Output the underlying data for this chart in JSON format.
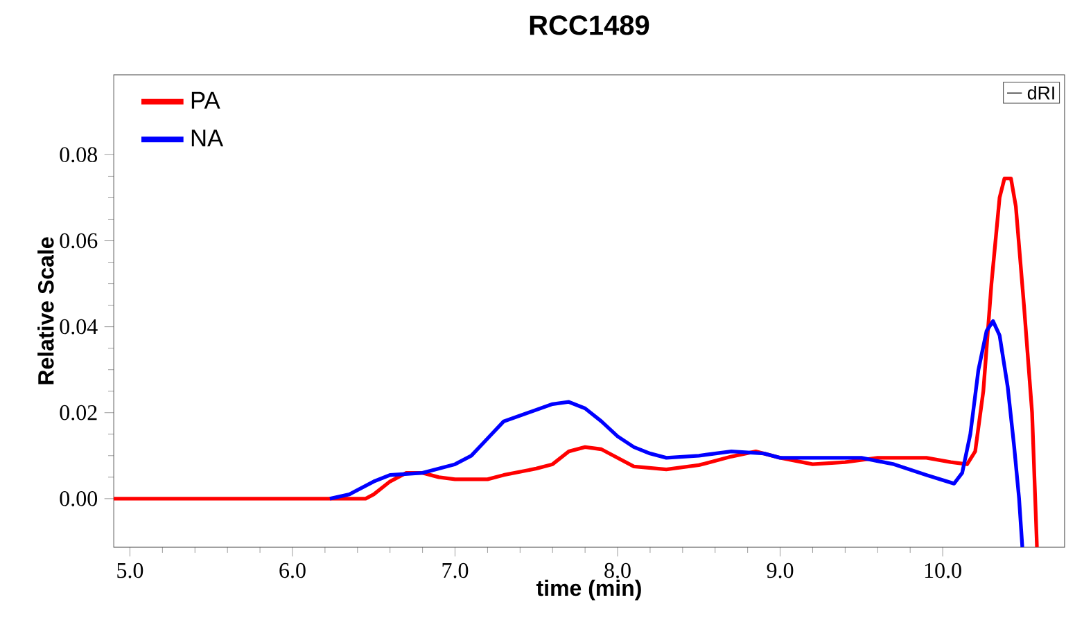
{
  "chart_data": {
    "type": "line",
    "title": "RCC1489",
    "xlabel": "time (min)",
    "ylabel": "Relative Scale",
    "xlim": [
      4.9,
      10.75
    ],
    "ylim": [
      -0.0113,
      0.0986
    ],
    "xticks": [
      {
        "value": 5,
        "label": "5.0"
      },
      {
        "value": 6,
        "label": "6.0"
      },
      {
        "value": 7,
        "label": "7.0"
      },
      {
        "value": 8,
        "label": "8.0"
      },
      {
        "value": 9,
        "label": "9.0"
      },
      {
        "value": 10,
        "label": "10.0"
      }
    ],
    "yticks": [
      {
        "value": 0,
        "label": "0.00"
      },
      {
        "value": 0.02,
        "label": "0.02"
      },
      {
        "value": 0.04,
        "label": "0.04"
      },
      {
        "value": 0.06,
        "label": "0.06"
      },
      {
        "value": 0.08,
        "label": "0.08"
      }
    ],
    "legend": "top left",
    "grid": false,
    "marker": "none",
    "line_style": "solid",
    "annotations": [
      "dRI"
    ],
    "series": [
      {
        "name": "PA",
        "color": "#ff0000",
        "x": [
          4.9,
          6.45,
          6.5,
          6.6,
          6.7,
          6.8,
          6.9,
          7.0,
          7.2,
          7.3,
          7.5,
          7.6,
          7.7,
          7.8,
          7.9,
          8.0,
          8.1,
          8.3,
          8.5,
          8.7,
          8.85,
          9.0,
          9.2,
          9.4,
          9.6,
          9.9,
          10.05,
          10.15,
          10.2,
          10.25,
          10.3,
          10.35,
          10.38,
          10.42,
          10.45,
          10.5,
          10.55,
          10.58
        ],
        "values": [
          0,
          0,
          0.001,
          0.004,
          0.006,
          0.006,
          0.005,
          0.0045,
          0.0045,
          0.0055,
          0.007,
          0.008,
          0.011,
          0.012,
          0.0115,
          0.0095,
          0.0075,
          0.0068,
          0.0078,
          0.0098,
          0.011,
          0.0095,
          0.008,
          0.0085,
          0.0095,
          0.0095,
          0.0085,
          0.008,
          0.011,
          0.025,
          0.05,
          0.07,
          0.0745,
          0.0745,
          0.068,
          0.045,
          0.02,
          -0.0113
        ]
      },
      {
        "name": "NA",
        "color": "#0000ff",
        "x": [
          6.23,
          6.35,
          6.5,
          6.6,
          6.8,
          7.0,
          7.1,
          7.2,
          7.3,
          7.45,
          7.6,
          7.7,
          7.8,
          7.9,
          8.0,
          8.1,
          8.2,
          8.3,
          8.5,
          8.7,
          8.9,
          9.0,
          9.3,
          9.5,
          9.7,
          9.9,
          10.07,
          10.12,
          10.17,
          10.22,
          10.27,
          10.31,
          10.35,
          10.4,
          10.44,
          10.47,
          10.49
        ],
        "values": [
          0,
          0.001,
          0.004,
          0.0055,
          0.006,
          0.008,
          0.01,
          0.014,
          0.018,
          0.02,
          0.022,
          0.0225,
          0.021,
          0.018,
          0.0145,
          0.012,
          0.0105,
          0.0095,
          0.01,
          0.011,
          0.0105,
          0.0095,
          0.0095,
          0.0095,
          0.008,
          0.0055,
          0.0035,
          0.006,
          0.015,
          0.03,
          0.039,
          0.0413,
          0.038,
          0.026,
          0.012,
          0.0,
          -0.0113
        ]
      }
    ]
  }
}
